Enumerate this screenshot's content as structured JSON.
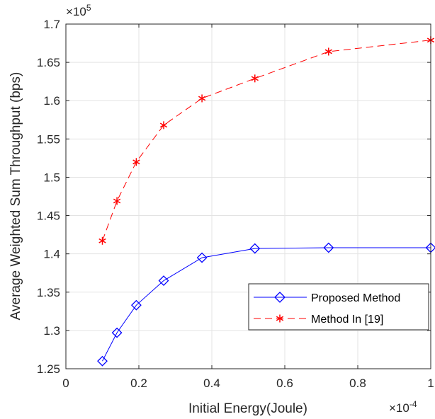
{
  "chart_data": {
    "type": "line",
    "xlabel": "Initial Energy(Joule)",
    "ylabel": "Average Weighted Sum Throughput (bps)",
    "x_multiplier": {
      "base": "×10",
      "exponent": "-4"
    },
    "y_multiplier": {
      "base": "×10",
      "exponent": "5"
    },
    "xlim": [
      0,
      1
    ],
    "ylim": [
      1.25,
      1.7
    ],
    "xticks": [
      0,
      0.2,
      0.4,
      0.6,
      0.8,
      1
    ],
    "xtick_labels": [
      "0",
      "0.2",
      "0.4",
      "0.6",
      "0.8",
      "1"
    ],
    "yticks": [
      1.25,
      1.3,
      1.35,
      1.4,
      1.45,
      1.5,
      1.55,
      1.6,
      1.65,
      1.7
    ],
    "ytick_labels": [
      "1.25",
      "1.3",
      "1.35",
      "1.4",
      "1.45",
      "1.5",
      "1.55",
      "1.6",
      "1.65",
      "1.7"
    ],
    "grid": true,
    "legend_position": "bottom-right",
    "series": [
      {
        "name": "Proposed Method",
        "color": "#0000ff",
        "line_style": "solid",
        "marker": "diamond",
        "x": [
          0.1,
          0.14,
          0.193,
          0.268,
          0.373,
          0.518,
          0.72,
          1.0
        ],
        "y": [
          1.26,
          1.297,
          1.333,
          1.365,
          1.395,
          1.407,
          1.408,
          1.408
        ]
      },
      {
        "name": "Method In [19]",
        "color": "#ff0000",
        "line_style": "dashed",
        "marker": "asterisk",
        "x": [
          0.1,
          0.14,
          0.193,
          0.268,
          0.373,
          0.518,
          0.72,
          1.0
        ],
        "y": [
          1.417,
          1.469,
          1.52,
          1.568,
          1.603,
          1.629,
          1.664,
          1.679
        ]
      }
    ]
  }
}
